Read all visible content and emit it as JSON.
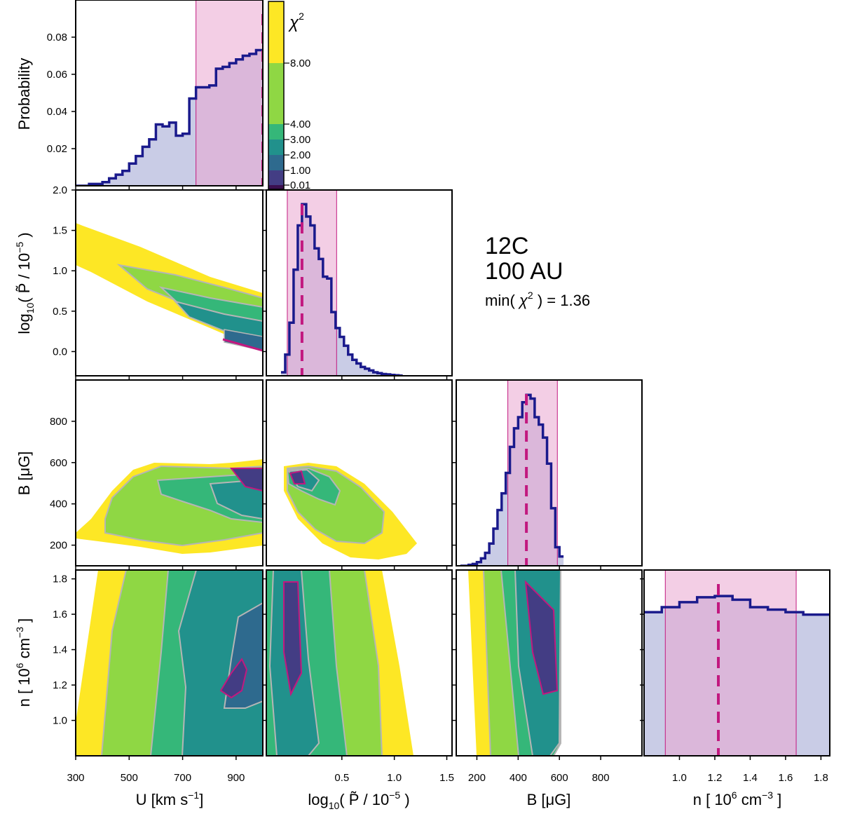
{
  "annotation": {
    "line1": "12C",
    "line2": "100 AU",
    "chi_prefix": "min(",
    "chi_symbol": "χ",
    "chi_sup": "2",
    "chi_suffix": ") = 1.36"
  },
  "colors": {
    "hist_line": "#1a1a8c",
    "hist_fill": "#c9cce6",
    "interval_fill": "#e9a6d0",
    "interval_line": "#c2187f",
    "contour_edge": "#b5b5b5",
    "levels": [
      "#3b0f4f",
      "#433d84",
      "#2e6a8e",
      "#21918c",
      "#35b779",
      "#8fd744",
      "#fde725"
    ]
  },
  "chart_data": {
    "type": "corner",
    "colorbar": {
      "title_symbol": "χ",
      "title_sup": "2",
      "levels": [
        0.01,
        1.0,
        2.0,
        3.0,
        4.0,
        8.0,
        12.0
      ],
      "tick_labels": [
        "0.01",
        "1.00",
        "2.00",
        "3.00",
        "4.00",
        "8.00"
      ]
    },
    "params": [
      {
        "name": "U",
        "label_main": "U [km s",
        "label_sup": "−1",
        "label_end": "]",
        "range": [
          300,
          1000
        ],
        "ticks": [
          300,
          500,
          700,
          900
        ],
        "tick_labels": [
          "300",
          "500",
          "700",
          "900"
        ],
        "best": 1000,
        "interval": [
          750,
          1000
        ],
        "hist_edges": [
          300,
          350,
          400,
          425,
          450,
          475,
          500,
          525,
          550,
          575,
          600,
          625,
          650,
          675,
          700,
          725,
          750,
          775,
          800,
          825,
          850,
          875,
          900,
          925,
          950,
          975,
          1000
        ],
        "hist_values": [
          0.0,
          0.001,
          0.002,
          0.004,
          0.006,
          0.008,
          0.012,
          0.016,
          0.021,
          0.025,
          0.033,
          0.032,
          0.034,
          0.027,
          0.028,
          0.047,
          0.053,
          0.053,
          0.054,
          0.063,
          0.064,
          0.066,
          0.068,
          0.07,
          0.071,
          0.073
        ]
      },
      {
        "name": "logP",
        "label_pre": "log",
        "label_sub": "10",
        "label_main": "( P̃ / 10",
        "label_sup": "−5",
        "label_end": ")",
        "range": [
          -0.22,
          1.55
        ],
        "ticks": [
          0.0,
          0.5,
          1.0,
          1.5
        ],
        "tick_labels": [
          "0.0",
          "0.5",
          "1.0",
          "1.5"
        ],
        "x_ticks": [
          0.5,
          1.0,
          1.5
        ],
        "x_tick_labels": [
          "0.5",
          "1.0",
          "1.5"
        ],
        "y_range": [
          -0.3,
          2.0
        ],
        "y_ticks": [
          0.0,
          0.5,
          1.0,
          1.5,
          2.0
        ],
        "y_tick_labels": [
          "0.0",
          "0.5",
          "1.0",
          "1.5",
          "2.0"
        ],
        "best": 0.12,
        "interval": [
          -0.02,
          0.45
        ],
        "hist_edges": [
          -0.08,
          -0.04,
          0.0,
          0.04,
          0.08,
          0.12,
          0.16,
          0.2,
          0.24,
          0.28,
          0.32,
          0.36,
          0.4,
          0.44,
          0.48,
          0.52,
          0.56,
          0.6,
          0.64,
          0.68,
          0.72,
          0.76,
          0.8,
          0.84,
          0.88,
          0.92,
          0.96,
          1.0,
          1.04,
          1.08
        ],
        "hist_values": [
          0.02,
          0.12,
          0.3,
          0.6,
          0.85,
          0.97,
          0.9,
          0.85,
          0.72,
          0.66,
          0.56,
          0.55,
          0.36,
          0.27,
          0.22,
          0.17,
          0.12,
          0.09,
          0.07,
          0.05,
          0.04,
          0.03,
          0.02,
          0.015,
          0.01,
          0.008,
          0.005,
          0.003,
          0.001
        ]
      },
      {
        "name": "B",
        "label_main": "B [μG]",
        "range": [
          100,
          1000
        ],
        "ticks": [
          200,
          400,
          600,
          800
        ],
        "tick_labels": [
          "200",
          "400",
          "600",
          "800"
        ],
        "best": 440,
        "interval": [
          350,
          590
        ],
        "hist_edges": [
          120,
          160,
          180,
          200,
          220,
          240,
          260,
          280,
          300,
          320,
          340,
          360,
          380,
          400,
          420,
          440,
          460,
          480,
          500,
          520,
          540,
          560,
          580,
          600,
          620
        ],
        "hist_values": [
          0.0,
          0.005,
          0.01,
          0.02,
          0.04,
          0.07,
          0.12,
          0.2,
          0.3,
          0.39,
          0.5,
          0.64,
          0.74,
          0.8,
          0.88,
          0.92,
          0.9,
          0.8,
          0.76,
          0.69,
          0.55,
          0.31,
          0.1,
          0.05
        ]
      },
      {
        "name": "n",
        "label_main": "n [ 10",
        "label_sup": "6",
        "label_mid": " cm",
        "label_sup2": "−3",
        "label_end": " ]",
        "range": [
          0.8,
          1.85
        ],
        "ticks": [
          1.0,
          1.2,
          1.4,
          1.6,
          1.8
        ],
        "tick_labels": [
          "1.0",
          "1.2",
          "1.4",
          "1.6",
          "1.8"
        ],
        "best": 1.22,
        "interval": [
          0.92,
          1.66
        ],
        "hist_edges": [
          0.8,
          0.9,
          1.0,
          1.1,
          1.2,
          1.3,
          1.4,
          1.5,
          1.6,
          1.7,
          1.85
        ],
        "hist_values": [
          1.16,
          1.2,
          1.24,
          1.28,
          1.29,
          1.26,
          1.2,
          1.18,
          1.16,
          1.14
        ],
        "hist_range": [
          0.0,
          1.5
        ]
      }
    ],
    "ylabel_top": "Probability",
    "prob_ticks": [
      0.02,
      0.04,
      0.06,
      0.08
    ],
    "prob_tick_labels": [
      "0.02",
      "0.04",
      "0.06",
      "0.08"
    ],
    "prob_range": [
      0.0,
      0.1
    ]
  }
}
